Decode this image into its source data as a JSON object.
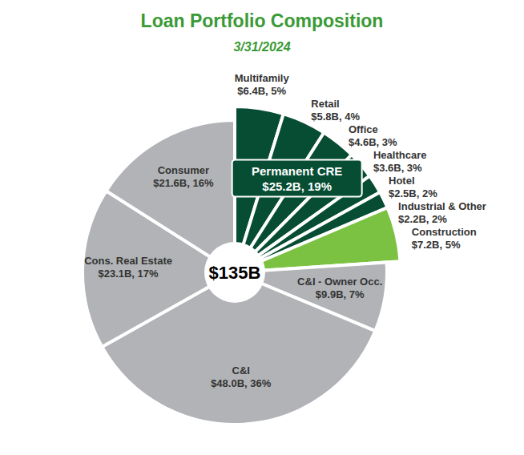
{
  "chart_data": {
    "type": "pie",
    "title": "Loan Portfolio Composition",
    "subtitle": "3/31/2024",
    "center_label": "$135B",
    "categories": [
      "Multifamily",
      "Retail",
      "Office",
      "Healthcare",
      "Hotel",
      "Industrial & Other",
      "Construction",
      "C&I - Owner Occ.",
      "C&I",
      "Cons. Real Estate",
      "Consumer"
    ],
    "values": [
      6.4,
      5.8,
      4.6,
      3.6,
      2.5,
      2.2,
      7.2,
      9.9,
      48.0,
      23.1,
      21.6
    ],
    "value_labels": [
      "$6.4B, 5%",
      "$5.8B, 4%",
      "$4.6B, 3%",
      "$3.6B, 3%",
      "$2.5B, 2%",
      "$2.2B, 2%",
      "$7.2B, 5%",
      "$9.9B, 7%",
      "$48.0B, 36%",
      "$23.1B, 17%",
      "$21.6B, 16%"
    ],
    "colors": [
      "#064d33",
      "#064d33",
      "#064d33",
      "#064d33",
      "#064d33",
      "#064d33",
      "#7cc242",
      "#b1b3b6",
      "#b1b3b6",
      "#b1b3b6",
      "#b1b3b6"
    ],
    "data_labels": true,
    "groups": [
      {
        "name": "Permanent CRE",
        "value_label": "$25.2B, 19%",
        "members": [
          "Multifamily",
          "Retail",
          "Office",
          "Healthcare",
          "Hotel",
          "Industrial & Other"
        ]
      }
    ]
  }
}
